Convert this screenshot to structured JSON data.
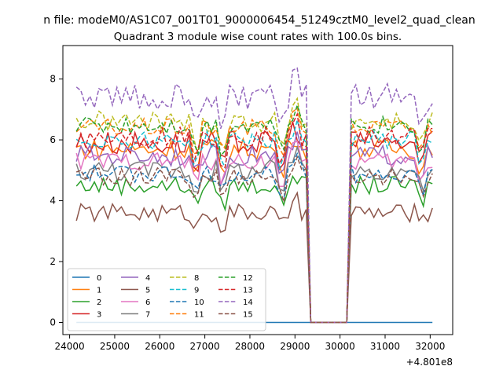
{
  "chart_data": {
    "type": "line",
    "suptitle": "n file: modeM0/AS1C07_001T01_9000006454_51249cztM0_level2_quad_clean",
    "title": "Quadrant 3 module wise count rates with 100.0s bins.",
    "xlabel": "",
    "ylabel": "",
    "offset_label": "+4.801e8",
    "xlim": [
      23850,
      32500
    ],
    "ylim": [
      -0.4,
      9.1
    ],
    "xticks": [
      24000,
      25000,
      26000,
      27000,
      28000,
      29000,
      30000,
      31000,
      32000
    ],
    "yticks": [
      0,
      2,
      4,
      6,
      8
    ],
    "grid": false,
    "legend_position": "lower-left",
    "legend_columns": 4,
    "series": [
      {
        "name": "0",
        "color": "#1f77b4",
        "dash": "solid",
        "base": 0.0,
        "amp": 0.0
      },
      {
        "name": "1",
        "color": "#ff7f0e",
        "dash": "solid",
        "base": 5.7,
        "amp": 0.35
      },
      {
        "name": "2",
        "color": "#2ca02c",
        "dash": "solid",
        "base": 4.5,
        "amp": 0.3
      },
      {
        "name": "3",
        "color": "#d62728",
        "dash": "solid",
        "base": 5.9,
        "amp": 0.4
      },
      {
        "name": "4",
        "color": "#9467bd",
        "dash": "solid",
        "base": 5.5,
        "amp": 0.35
      },
      {
        "name": "5",
        "color": "#8c564b",
        "dash": "solid",
        "base": 3.6,
        "amp": 0.3
      },
      {
        "name": "6",
        "color": "#e377c2",
        "dash": "solid",
        "base": 5.3,
        "amp": 0.3
      },
      {
        "name": "7",
        "color": "#7f7f7f",
        "dash": "solid",
        "base": 5.0,
        "amp": 0.35
      },
      {
        "name": "8",
        "color": "#bcbd22",
        "dash": "dashed",
        "base": 6.6,
        "amp": 0.35
      },
      {
        "name": "9",
        "color": "#17becf",
        "dash": "dashed",
        "base": 6.0,
        "amp": 0.3
      },
      {
        "name": "10",
        "color": "#1f77b4",
        "dash": "dashed",
        "base": 4.9,
        "amp": 0.3
      },
      {
        "name": "11",
        "color": "#ff7f0e",
        "dash": "dashed",
        "base": 6.4,
        "amp": 0.3
      },
      {
        "name": "12",
        "color": "#2ca02c",
        "dash": "dashed",
        "base": 6.5,
        "amp": 0.3
      },
      {
        "name": "13",
        "color": "#d62728",
        "dash": "dashed",
        "base": 6.1,
        "amp": 0.35
      },
      {
        "name": "14",
        "color": "#9467bd",
        "dash": "dashed",
        "base": 7.4,
        "amp": 0.45
      },
      {
        "name": "15",
        "color": "#8c564b",
        "dash": "dashed",
        "base": 4.8,
        "amp": 0.3
      }
    ],
    "time_profile": {
      "x_start": 24150,
      "bin": 100,
      "gap_start": 29300,
      "gap_end": 30200,
      "end": 32100
    }
  }
}
